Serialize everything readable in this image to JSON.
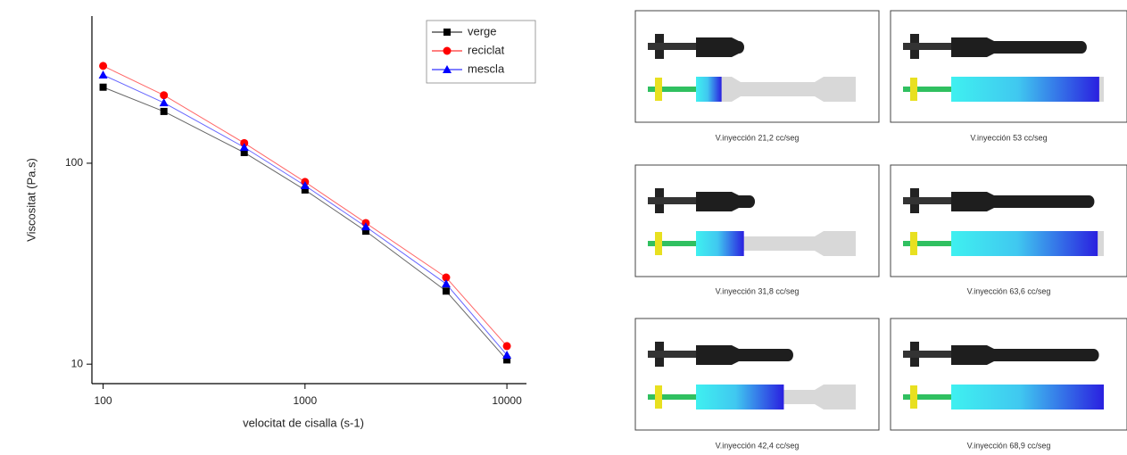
{
  "chart_data": {
    "type": "line",
    "x_label": "velocitat de cisalla (s-1)",
    "y_label": "Viscositat (Pa.s)",
    "x": [
      100,
      200,
      500,
      1000,
      2000,
      5000,
      10000
    ],
    "xscale": "log",
    "yscale": "log",
    "xlim": [
      88,
      12500
    ],
    "ylim": [
      8,
      540
    ],
    "xticks": [
      100,
      1000,
      10000
    ],
    "yticks": [
      10,
      100
    ],
    "legend": "upper right",
    "series": [
      {
        "name": "verge",
        "color": "#000000",
        "marker": "square",
        "values": [
          239,
          181,
          113,
          73.6,
          45.9,
          23.1,
          10.5
        ]
      },
      {
        "name": "reciclat",
        "color": "#ff0000",
        "marker": "circle",
        "values": [
          305,
          218,
          126,
          80.7,
          50.4,
          27,
          12.3
        ]
      },
      {
        "name": "mescla",
        "color": "#0000ff",
        "marker": "triangle",
        "values": [
          275,
          200,
          120,
          77.4,
          48.3,
          25.1,
          11.1
        ]
      }
    ]
  },
  "panels": [
    {
      "caption": "V.inyección 21,2 cc/seg"
    },
    {
      "caption": "V.inyección 53 cc/seg"
    },
    {
      "caption": "V.inyección 31,8 cc/seg"
    },
    {
      "caption": "V.inyección 63,6 cc/seg"
    },
    {
      "caption": "V.inyección 42,4 cc/seg"
    },
    {
      "caption": "V.inyección 68,9 cc/seg"
    }
  ]
}
